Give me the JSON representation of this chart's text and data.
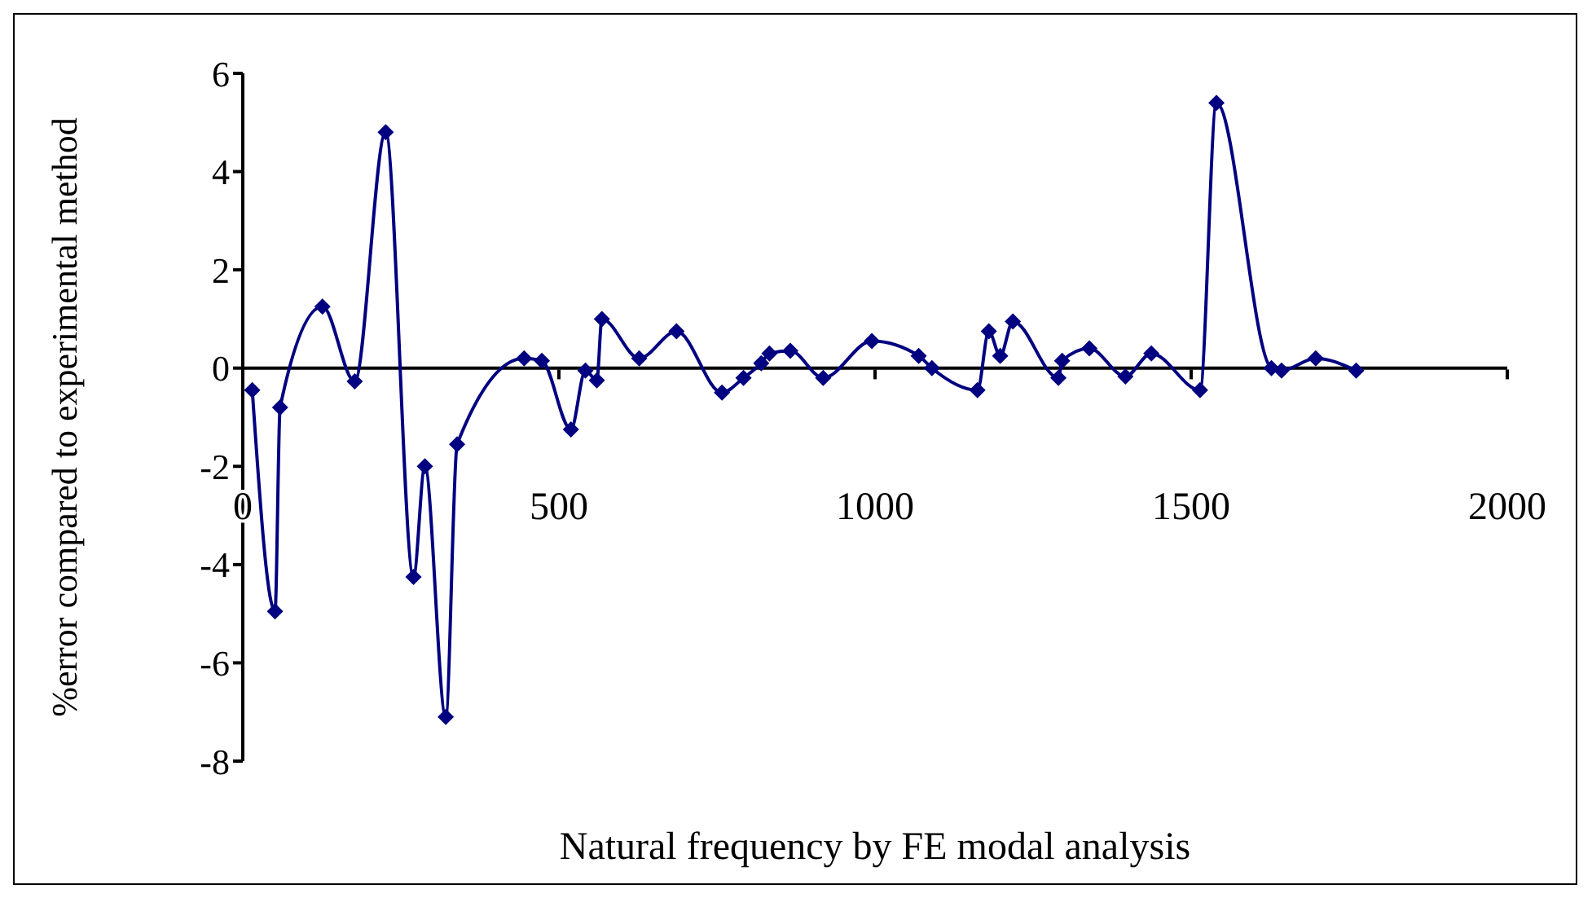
{
  "chart_data": {
    "type": "line",
    "xlabel": "Natural frequency by FE modal analysis",
    "ylabel": "%error compared to experimental method",
    "x": [
      15,
      51,
      59,
      126,
      177,
      226,
      270,
      288,
      321,
      339,
      445,
      473,
      519,
      542,
      560,
      568,
      627,
      686,
      758,
      792,
      820,
      833,
      866,
      918,
      995,
      1069,
      1090,
      1162,
      1180,
      1198,
      1218,
      1290,
      1296,
      1339,
      1396,
      1437,
      1514,
      1540,
      1627,
      1643,
      1697,
      1761
    ],
    "series": [
      {
        "color": "#000080",
        "values": [
          -0.45,
          -4.95,
          -0.8,
          1.25,
          -0.27,
          4.8,
          -4.25,
          -2.0,
          -7.1,
          -1.55,
          0.2,
          0.15,
          -1.25,
          -0.05,
          -0.25,
          1.0,
          0.2,
          0.75,
          -0.5,
          -0.2,
          0.1,
          0.3,
          0.35,
          -0.2,
          0.55,
          0.25,
          0.0,
          -0.45,
          0.75,
          0.25,
          0.95,
          -0.2,
          0.15,
          0.4,
          -0.17,
          0.3,
          -0.45,
          5.4,
          0.0,
          -0.05,
          0.2,
          -0.05
        ]
      }
    ],
    "xlim": [
      0,
      2000
    ],
    "xticks": [
      0,
      500,
      1000,
      1500,
      2000
    ],
    "ylim": [
      -8,
      6
    ],
    "yticks": [
      -8,
      -6,
      -4,
      -2,
      0,
      2,
      4,
      6
    ],
    "marker": "diamond",
    "line_style": "solid"
  }
}
